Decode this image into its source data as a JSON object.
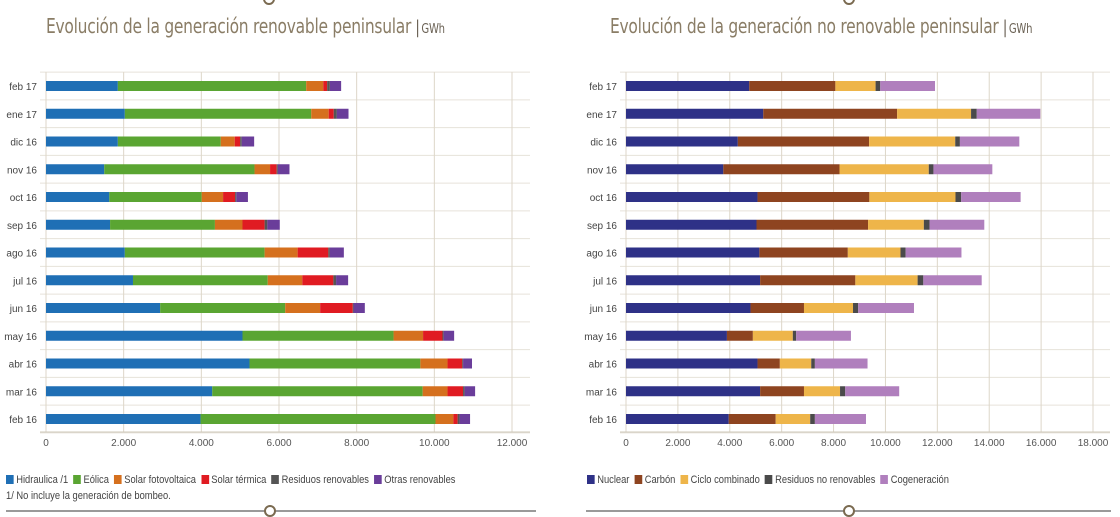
{
  "chart_data": [
    {
      "type": "bar",
      "orientation": "horizontal",
      "stacked": true,
      "title": "Evolución de la generación renovable peninsular",
      "unit": "GWh",
      "categories": [
        "feb 17",
        "ene 17",
        "dic 16",
        "nov 16",
        "oct 16",
        "sep 16",
        "ago 16",
        "jul 16",
        "jun 16",
        "may 16",
        "abr 16",
        "mar 16",
        "feb 16"
      ],
      "xlim": [
        0,
        12000
      ],
      "xticks": [
        0,
        2000,
        4000,
        6000,
        8000,
        10000,
        12000
      ],
      "xtick_labels": [
        "0",
        "2.000",
        "4.000",
        "6.000",
        "8.000",
        "10.000",
        "12.000"
      ],
      "grid": true,
      "legend_position": "bottom",
      "note": "1/ No incluye la generación de bombeo.",
      "series": [
        {
          "name": "Hidraulica /1",
          "color": "#1f6fb5",
          "values": [
            1850,
            2030,
            1850,
            1500,
            1630,
            1650,
            2030,
            2240,
            2940,
            5060,
            5240,
            4280,
            3980
          ]
        },
        {
          "name": "Eólica",
          "color": "#5aa532",
          "values": [
            4850,
            4800,
            2650,
            3870,
            2380,
            2700,
            3600,
            3470,
            3220,
            3890,
            4400,
            5420,
            6050
          ]
        },
        {
          "name": "Solar fotovoltaica",
          "color": "#d5701e",
          "values": [
            440,
            450,
            360,
            400,
            550,
            710,
            850,
            890,
            900,
            760,
            700,
            640,
            460
          ]
        },
        {
          "name": "Solar térmica",
          "color": "#e01b22",
          "values": [
            100,
            130,
            140,
            170,
            310,
            570,
            790,
            800,
            840,
            500,
            380,
            400,
            110
          ]
        },
        {
          "name": "Residuos renovables",
          "color": "#555555",
          "values": [
            70,
            80,
            40,
            30,
            30,
            70,
            40,
            70,
            20,
            30,
            20,
            40,
            50
          ]
        },
        {
          "name": "Otras renovables",
          "color": "#6a3d9a",
          "values": [
            290,
            300,
            320,
            300,
            300,
            320,
            360,
            310,
            290,
            270,
            230,
            270,
            270
          ]
        }
      ]
    },
    {
      "type": "bar",
      "orientation": "horizontal",
      "stacked": true,
      "title": "Evolución de la generación no renovable peninsular",
      "unit": "GWh",
      "categories": [
        "feb 17",
        "ene 17",
        "dic 16",
        "nov 16",
        "oct 16",
        "sep 16",
        "ago 16",
        "jul 16",
        "jun 16",
        "may 16",
        "abr 16",
        "mar 16",
        "feb 16"
      ],
      "xlim": [
        0,
        18000
      ],
      "xticks": [
        0,
        2000,
        4000,
        6000,
        8000,
        10000,
        12000,
        14000,
        16000,
        18000
      ],
      "xtick_labels": [
        "0",
        "2.000",
        "4.000",
        "6.000",
        "8.000",
        "10.000",
        "12.000",
        "14.000",
        "16.000",
        "18.000"
      ],
      "grid": true,
      "legend_position": "bottom",
      "series": [
        {
          "name": "Nuclear",
          "color": "#2e3187",
          "values": [
            4750,
            5290,
            4310,
            3750,
            5070,
            5030,
            5140,
            5170,
            4800,
            3890,
            5070,
            5170,
            3960
          ]
        },
        {
          "name": "Carbón",
          "color": "#8e4420",
          "values": [
            3320,
            5160,
            5060,
            4480,
            4310,
            4300,
            3410,
            3670,
            2060,
            1000,
            860,
            1690,
            1810
          ]
        },
        {
          "name": "Ciclo combinado",
          "color": "#eeb54a",
          "values": [
            1550,
            2850,
            3320,
            3440,
            3320,
            2150,
            2030,
            2400,
            1890,
            1540,
            1210,
            1390,
            1330
          ]
        },
        {
          "name": "Residuos no renovables",
          "color": "#4a4a4a",
          "values": [
            180,
            220,
            180,
            180,
            220,
            220,
            200,
            220,
            200,
            130,
            140,
            200,
            180
          ]
        },
        {
          "name": "Cogeneración",
          "color": "#b07fbd",
          "values": [
            2110,
            2450,
            2290,
            2270,
            2290,
            2110,
            2150,
            2250,
            2150,
            2110,
            2030,
            2080,
            1970
          ]
        }
      ]
    }
  ]
}
